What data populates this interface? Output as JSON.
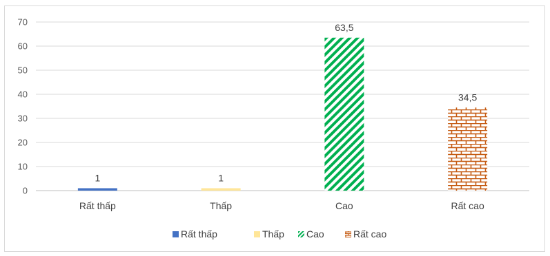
{
  "chart_data": {
    "type": "bar",
    "categories": [
      "Rất thấp",
      "Thấp",
      "Cao",
      "Rất cao"
    ],
    "series": [
      {
        "name": "Rất thấp",
        "values": [
          1,
          null,
          null,
          null
        ],
        "color": "#4472c4",
        "pattern": "solid"
      },
      {
        "name": "Thấp",
        "values": [
          null,
          1,
          null,
          null
        ],
        "color": "#ffe699",
        "pattern": "solid"
      },
      {
        "name": "Cao",
        "values": [
          null,
          null,
          63.5,
          null
        ],
        "color": "#00b050",
        "pattern": "diagonal-stripes"
      },
      {
        "name": "Rất cao",
        "values": [
          null,
          null,
          null,
          34.5
        ],
        "color": "#c55a11",
        "pattern": "brick"
      }
    ],
    "data_labels": [
      "1",
      "1",
      "63,5",
      "34,5"
    ],
    "y_ticks": [
      "0",
      "10",
      "20",
      "30",
      "40",
      "50",
      "60",
      "70"
    ],
    "ylim": [
      0,
      70
    ],
    "title": "",
    "xlabel": "",
    "ylabel": "",
    "grid": true,
    "legend_position": "bottom"
  }
}
